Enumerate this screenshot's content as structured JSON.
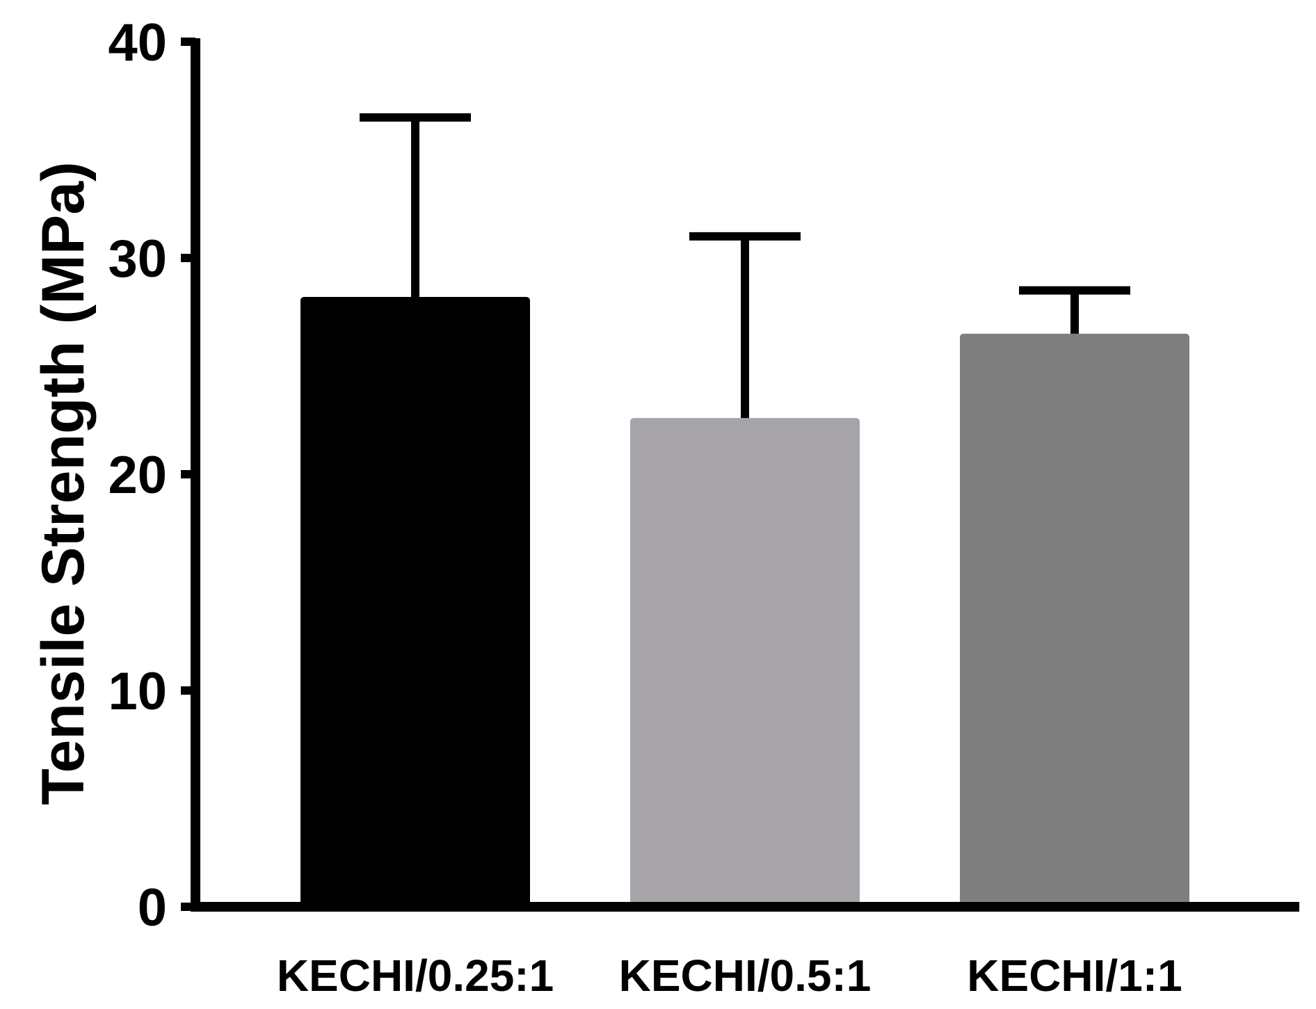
{
  "chart_data": {
    "type": "bar",
    "title": "",
    "xlabel": "",
    "ylabel": "Tensile Strength (MPa)",
    "ylim": [
      0,
      40
    ],
    "yticks": [
      "0",
      "10",
      "20",
      "30",
      "40"
    ],
    "grid": false,
    "legend": "none",
    "categories": [
      "KECHI/0.25:1",
      "KECHI/0.5:1",
      "KECHI/1:1"
    ],
    "values": [
      28.2,
      22.6,
      26.5
    ],
    "error_upper": [
      36.5,
      31.0,
      28.5
    ],
    "colors": [
      "#000000",
      "#a7a4a9",
      "#7f7f7f"
    ]
  }
}
